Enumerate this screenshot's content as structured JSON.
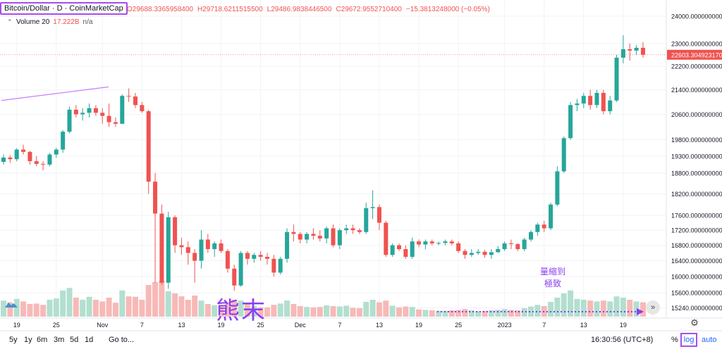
{
  "header": {
    "symbol": "Bitcoin/Dollar · D · CoinMarketCap",
    "open": "O29688.3365958400",
    "high": "H29718.6211515500",
    "low": "L29486.9838446500",
    "close": "C29672.9552710400",
    "change": "−15.3813248000 (−0.05%)"
  },
  "volume": {
    "label": "Volume 20",
    "value": "17.222B",
    "ma": "n/a"
  },
  "price_badge": "22603.3049231700",
  "bottom": {
    "ranges": [
      "5y",
      "1y",
      "6m",
      "3m",
      "5d",
      "1d"
    ],
    "goto": "Go to...",
    "clock": "16:30:56 (UTC+8)",
    "percent": "%",
    "log": "log",
    "auto": "auto"
  },
  "annotations": {
    "bear": "熊末",
    "volume_line1": "量縮到",
    "volume_line2": "極致"
  },
  "colors": {
    "up": "#26a69a",
    "down": "#ef5350",
    "vol_up": "#b2dfcf",
    "vol_down": "#f7b9b7",
    "annotation": "#8a3ff0"
  },
  "chart_data": {
    "type": "candlestick",
    "yscale": "log",
    "ylim": [
      15000,
      24400
    ],
    "price_ticks": [
      "24000.0000000000",
      "23000.0000000000",
      "22200.0000000000",
      "21400.0000000000",
      "20600.0000000000",
      "19800.0000000000",
      "19300.0000000000",
      "18800.0000000000",
      "18200.0000000000",
      "17600.0000000000",
      "17200.0000000000",
      "16800.0000000000",
      "16400.0000000000",
      "16000.0000000000",
      "15600.0000000000",
      "15240.0000000000"
    ],
    "x_labels": [
      {
        "i": 2,
        "label": "19"
      },
      {
        "i": 8,
        "label": "25"
      },
      {
        "i": 15,
        "label": "Nov"
      },
      {
        "i": 21,
        "label": "7"
      },
      {
        "i": 27,
        "label": "13"
      },
      {
        "i": 33,
        "label": "19"
      },
      {
        "i": 39,
        "label": "25"
      },
      {
        "i": 45,
        "label": "Dec"
      },
      {
        "i": 51,
        "label": "7"
      },
      {
        "i": 57,
        "label": "13"
      },
      {
        "i": 63,
        "label": "19"
      },
      {
        "i": 69,
        "label": "25"
      },
      {
        "i": 76,
        "label": "2023"
      },
      {
        "i": 82,
        "label": "7"
      },
      {
        "i": 88,
        "label": "13"
      },
      {
        "i": 94,
        "label": "19"
      }
    ],
    "candles": [
      [
        19130,
        19350,
        19050,
        19260,
        0.38
      ],
      [
        19260,
        19330,
        19100,
        19210,
        0.34
      ],
      [
        19210,
        19540,
        19150,
        19500,
        0.42
      ],
      [
        19500,
        19650,
        19350,
        19430,
        0.36
      ],
      [
        19430,
        19460,
        19050,
        19150,
        0.3
      ],
      [
        19150,
        19300,
        19000,
        19070,
        0.31
      ],
      [
        19070,
        19150,
        18880,
        19050,
        0.28
      ],
      [
        19050,
        19400,
        19000,
        19350,
        0.4
      ],
      [
        19350,
        19550,
        19250,
        19500,
        0.43
      ],
      [
        19500,
        20100,
        19400,
        20050,
        0.62
      ],
      [
        20050,
        20850,
        20000,
        20750,
        0.68
      ],
      [
        20750,
        20900,
        20500,
        20600,
        0.45
      ],
      [
        20600,
        20800,
        20400,
        20650,
        0.4
      ],
      [
        20650,
        20950,
        20500,
        20800,
        0.47
      ],
      [
        20800,
        20900,
        20550,
        20650,
        0.4
      ],
      [
        20650,
        20800,
        20300,
        20550,
        0.36
      ],
      [
        20550,
        20950,
        20200,
        20350,
        0.45
      ],
      [
        20350,
        20500,
        20200,
        20300,
        0.33
      ],
      [
        20300,
        21250,
        20300,
        21200,
        0.62
      ],
      [
        21200,
        21450,
        21000,
        21180,
        0.48
      ],
      [
        21180,
        21300,
        20800,
        20900,
        0.47
      ],
      [
        20900,
        21000,
        20650,
        20700,
        0.4
      ],
      [
        20700,
        20750,
        18200,
        18550,
        0.75
      ],
      [
        18550,
        18800,
        15850,
        17650,
        0.82
      ],
      [
        17650,
        17900,
        15800,
        15850,
        0.85
      ],
      [
        15850,
        17700,
        15700,
        17550,
        0.6
      ],
      [
        17550,
        17600,
        16600,
        16800,
        0.55
      ],
      [
        16800,
        17000,
        16550,
        16750,
        0.48
      ],
      [
        16750,
        16900,
        16300,
        16600,
        0.4
      ],
      [
        16600,
        16700,
        15850,
        16400,
        0.5
      ],
      [
        16400,
        17200,
        16200,
        16950,
        0.38
      ],
      [
        16950,
        17100,
        16600,
        16700,
        0.3
      ],
      [
        16700,
        16900,
        16500,
        16850,
        0.27
      ],
      [
        16850,
        16950,
        16600,
        16650,
        0.26
      ],
      [
        16650,
        16700,
        16100,
        16200,
        0.34
      ],
      [
        16200,
        16300,
        15650,
        15780,
        0.4
      ],
      [
        15780,
        16650,
        15750,
        16600,
        0.38
      ],
      [
        16600,
        16650,
        16300,
        16450,
        0.3
      ],
      [
        16450,
        16600,
        16350,
        16550,
        0.25
      ],
      [
        16550,
        16650,
        16400,
        16500,
        0.22
      ],
      [
        16500,
        16600,
        16300,
        16450,
        0.22
      ],
      [
        16450,
        16550,
        16000,
        16100,
        0.28
      ],
      [
        16100,
        16500,
        16050,
        16450,
        0.31
      ],
      [
        16450,
        17250,
        16350,
        17150,
        0.38
      ],
      [
        17150,
        17350,
        16900,
        17100,
        0.3
      ],
      [
        17100,
        17150,
        16850,
        16950,
        0.25
      ],
      [
        16950,
        17150,
        16850,
        17100,
        0.23
      ],
      [
        17100,
        17250,
        16950,
        17050,
        0.22
      ],
      [
        17050,
        17200,
        16900,
        16980,
        0.23
      ],
      [
        16980,
        17300,
        16850,
        17250,
        0.27
      ],
      [
        17250,
        17350,
        16750,
        16800,
        0.25
      ],
      [
        16800,
        17250,
        16700,
        17200,
        0.24
      ],
      [
        17200,
        17350,
        17100,
        17250,
        0.26
      ],
      [
        17250,
        17350,
        17100,
        17200,
        0.21
      ],
      [
        17200,
        17250,
        17100,
        17150,
        0.2
      ],
      [
        17150,
        17950,
        17100,
        17800,
        0.35
      ],
      [
        17800,
        18300,
        17500,
        17830,
        0.4
      ],
      [
        17830,
        17900,
        17200,
        17400,
        0.34
      ],
      [
        17400,
        17450,
        16500,
        16550,
        0.38
      ],
      [
        16550,
        16850,
        16500,
        16800,
        0.26
      ],
      [
        16800,
        16850,
        16650,
        16700,
        0.22
      ],
      [
        16700,
        16800,
        16450,
        16500,
        0.24
      ],
      [
        16500,
        17000,
        16450,
        16900,
        0.23
      ],
      [
        16900,
        16950,
        16750,
        16820,
        0.17
      ],
      [
        16820,
        16950,
        16700,
        16900,
        0.16
      ],
      [
        16900,
        16950,
        16800,
        16850,
        0.15
      ],
      [
        16850,
        16900,
        16800,
        16860,
        0.14
      ],
      [
        16860,
        16950,
        16800,
        16900,
        0.14
      ],
      [
        16900,
        16950,
        16800,
        16850,
        0.15
      ],
      [
        16850,
        16900,
        16600,
        16650,
        0.16
      ],
      [
        16650,
        16700,
        16450,
        16550,
        0.18
      ],
      [
        16550,
        16700,
        16500,
        16600,
        0.15
      ],
      [
        16600,
        16700,
        16550,
        16630,
        0.13
      ],
      [
        16630,
        16680,
        16480,
        16550,
        0.14
      ],
      [
        16550,
        16700,
        16450,
        16620,
        0.15
      ],
      [
        16620,
        16780,
        16600,
        16700,
        0.16
      ],
      [
        16700,
        16900,
        16650,
        16850,
        0.18
      ],
      [
        16850,
        16950,
        16700,
        16830,
        0.16
      ],
      [
        16830,
        16850,
        16650,
        16700,
        0.15
      ],
      [
        16700,
        17000,
        16650,
        16950,
        0.2
      ],
      [
        16950,
        17200,
        16900,
        17150,
        0.24
      ],
      [
        17150,
        17400,
        17050,
        17350,
        0.28
      ],
      [
        17350,
        17450,
        17150,
        17250,
        0.25
      ],
      [
        17250,
        17950,
        17200,
        17900,
        0.35
      ],
      [
        17900,
        19000,
        17850,
        18850,
        0.45
      ],
      [
        18850,
        19900,
        18800,
        19850,
        0.55
      ],
      [
        19850,
        21000,
        19800,
        20900,
        0.62
      ],
      [
        20900,
        21100,
        20700,
        20950,
        0.42
      ],
      [
        20950,
        21300,
        20800,
        21200,
        0.4
      ],
      [
        21200,
        21400,
        20750,
        20900,
        0.38
      ],
      [
        20900,
        21400,
        20800,
        21300,
        0.36
      ],
      [
        21300,
        21400,
        20600,
        20700,
        0.38
      ],
      [
        20700,
        21200,
        20600,
        21050,
        0.36
      ],
      [
        21050,
        22600,
        21000,
        22500,
        0.48
      ],
      [
        22500,
        23300,
        22300,
        22800,
        0.45
      ],
      [
        22800,
        23000,
        22400,
        22750,
        0.4
      ],
      [
        22750,
        22950,
        22600,
        22850,
        0.36
      ],
      [
        22850,
        23050,
        22500,
        22603,
        0.34
      ]
    ]
  }
}
